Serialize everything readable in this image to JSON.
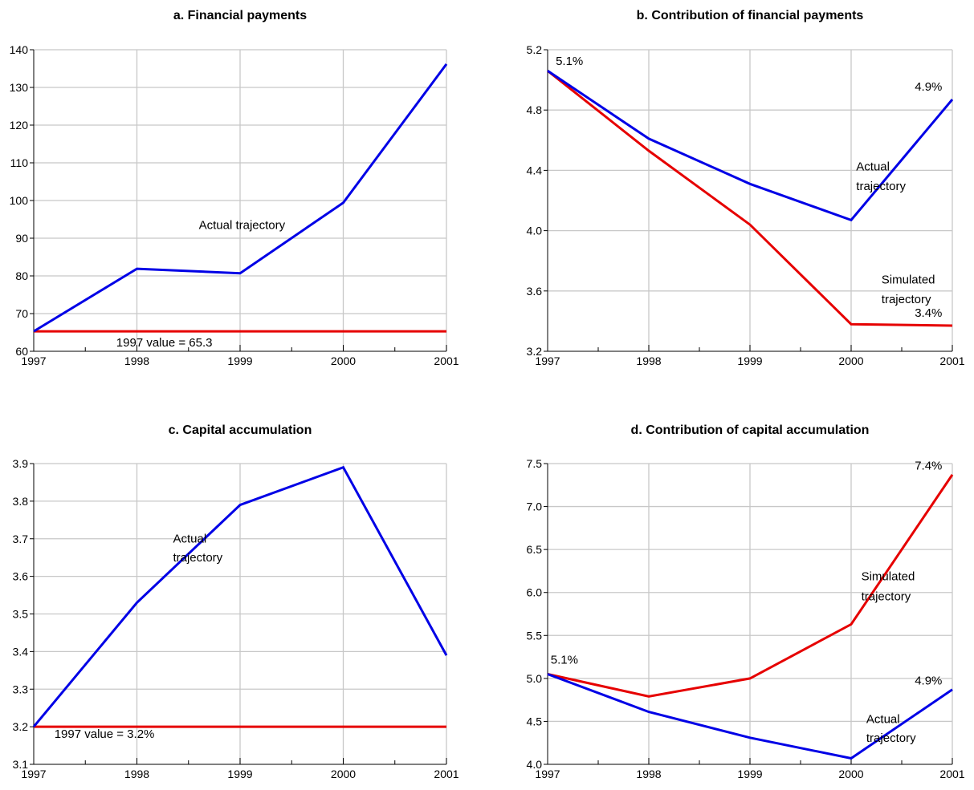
{
  "colors": {
    "actual": "#0000e6",
    "simulated": "#e60000",
    "grid": "#c8c8c8",
    "axis": "#000000"
  },
  "chart_data": [
    {
      "id": "a",
      "type": "line",
      "title": "a. Financial payments",
      "x": [
        1997,
        1998,
        1999,
        2000,
        2001
      ],
      "xlim": [
        1997,
        2001
      ],
      "ylim": [
        60,
        140
      ],
      "yticks": [
        60,
        70,
        80,
        90,
        100,
        110,
        120,
        130,
        140
      ],
      "ytick_labels": [
        "60",
        "70",
        "80",
        "90",
        "100",
        "110",
        "120",
        "130",
        "140"
      ],
      "xtick_labels": [
        "1997",
        "1998",
        "1999",
        "2000",
        "2001"
      ],
      "grid": true,
      "series": [
        {
          "key": "actual",
          "color": "#0000e6",
          "values": [
            65.3,
            81.9,
            80.7,
            99.4,
            136.2
          ]
        },
        {
          "key": "simulated",
          "color": "#e60000",
          "values": [
            65.3,
            65.3,
            65.3,
            65.3,
            65.3
          ]
        }
      ],
      "annotations": [
        {
          "text": "Actual trajectory",
          "x": 1998.6,
          "y": 92.5,
          "anchor": "start"
        },
        {
          "text": "1997 value = 65.3",
          "x": 1997.8,
          "y": 61.3,
          "anchor": "start"
        }
      ]
    },
    {
      "id": "b",
      "type": "line",
      "title": "b. Contribution of financial payments",
      "x": [
        1997,
        1998,
        1999,
        2000,
        2001
      ],
      "xlim": [
        1997,
        2001
      ],
      "ylim": [
        3.2,
        5.2
      ],
      "yticks": [
        3.2,
        3.6,
        4.0,
        4.4,
        4.8,
        5.2
      ],
      "ytick_labels": [
        "3.2",
        "3.6",
        "4.0",
        "4.4",
        "4.8",
        "5.2"
      ],
      "xtick_labels": [
        "1997",
        "1998",
        "1999",
        "2000",
        "2001"
      ],
      "grid": true,
      "series": [
        {
          "key": "actual",
          "color": "#0000e6",
          "values": [
            5.06,
            4.61,
            4.31,
            4.07,
            4.87
          ]
        },
        {
          "key": "simulated",
          "color": "#e60000",
          "values": [
            5.06,
            4.53,
            4.04,
            3.38,
            3.37
          ]
        }
      ],
      "annotations": [
        {
          "text": "5.1%",
          "x": 1997.08,
          "y": 5.1,
          "anchor": "start"
        },
        {
          "text": "4.9%",
          "x": 2000.9,
          "y": 4.93,
          "anchor": "end"
        },
        {
          "text": "Actual",
          "x": 2000.05,
          "y": 4.4,
          "anchor": "start"
        },
        {
          "text": "trajectory",
          "x": 2000.05,
          "y": 4.27,
          "anchor": "start"
        },
        {
          "text": "Simulated",
          "x": 2000.3,
          "y": 3.65,
          "anchor": "start"
        },
        {
          "text": "trajectory",
          "x": 2000.3,
          "y": 3.52,
          "anchor": "start"
        },
        {
          "text": "3.4%",
          "x": 2000.9,
          "y": 3.43,
          "anchor": "end"
        }
      ]
    },
    {
      "id": "c",
      "type": "line",
      "title": "c. Capital accumulation",
      "x": [
        1997,
        1998,
        1999,
        2000,
        2001
      ],
      "xlim": [
        1997,
        2001
      ],
      "ylim": [
        3.1,
        3.9
      ],
      "yticks": [
        3.1,
        3.2,
        3.3,
        3.4,
        3.5,
        3.6,
        3.7,
        3.8,
        3.9
      ],
      "ytick_labels": [
        "3.1",
        "3.2",
        "3.3",
        "3.4",
        "3.5",
        "3.6",
        "3.7",
        "3.8",
        "3.9"
      ],
      "xtick_labels": [
        "1997",
        "1998",
        "1999",
        "2000",
        "2001"
      ],
      "grid": true,
      "series": [
        {
          "key": "actual",
          "color": "#0000e6",
          "values": [
            3.2,
            3.53,
            3.79,
            3.89,
            3.39
          ]
        },
        {
          "key": "simulated",
          "color": "#e60000",
          "values": [
            3.2,
            3.2,
            3.2,
            3.2,
            3.2
          ]
        }
      ],
      "annotations": [
        {
          "text": "Actual",
          "x": 1998.35,
          "y": 3.69,
          "anchor": "start"
        },
        {
          "text": "trajectory",
          "x": 1998.35,
          "y": 3.64,
          "anchor": "start"
        },
        {
          "text": "1997 value = 3.2%",
          "x": 1997.2,
          "y": 3.17,
          "anchor": "start"
        }
      ]
    },
    {
      "id": "d",
      "type": "line",
      "title": "d. Contribution of capital accumulation",
      "x": [
        1997,
        1998,
        1999,
        2000,
        2001
      ],
      "xlim": [
        1997,
        2001
      ],
      "ylim": [
        4.0,
        7.5
      ],
      "yticks": [
        4.0,
        4.5,
        5.0,
        5.5,
        6.0,
        6.5,
        7.0,
        7.5
      ],
      "ytick_labels": [
        "4.0",
        "4.5",
        "5.0",
        "5.5",
        "6.0",
        "6.5",
        "7.0",
        "7.5"
      ],
      "xtick_labels": [
        "1997",
        "1998",
        "1999",
        "2000",
        "2001"
      ],
      "grid": true,
      "series": [
        {
          "key": "actual",
          "color": "#0000e6",
          "values": [
            5.05,
            4.61,
            4.31,
            4.07,
            4.87
          ]
        },
        {
          "key": "simulated",
          "color": "#e60000",
          "values": [
            5.05,
            4.79,
            5.0,
            5.63,
            7.37
          ]
        }
      ],
      "annotations": [
        {
          "text": "7.4%",
          "x": 2000.9,
          "y": 7.43,
          "anchor": "end"
        },
        {
          "text": "Simulated",
          "x": 2000.1,
          "y": 6.14,
          "anchor": "start"
        },
        {
          "text": "trajectory",
          "x": 2000.1,
          "y": 5.91,
          "anchor": "start"
        },
        {
          "text": "5.1%",
          "x": 1997.03,
          "y": 5.17,
          "anchor": "start"
        },
        {
          "text": "4.9%",
          "x": 2000.9,
          "y": 4.93,
          "anchor": "end"
        },
        {
          "text": "Actual",
          "x": 2000.15,
          "y": 4.48,
          "anchor": "start"
        },
        {
          "text": "trajectory",
          "x": 2000.15,
          "y": 4.26,
          "anchor": "start"
        }
      ]
    }
  ]
}
